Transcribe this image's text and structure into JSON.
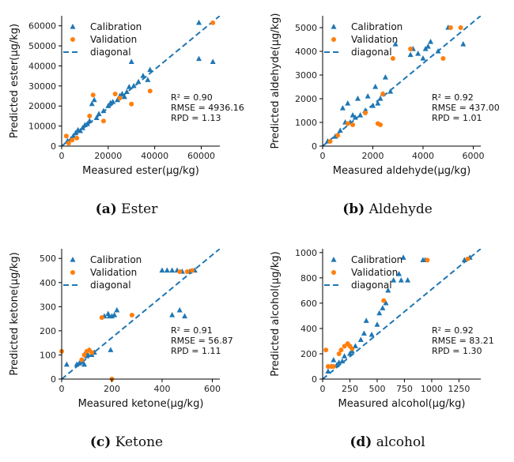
{
  "colors": {
    "calibration": "#1f77b4",
    "validation": "#ff7f0e",
    "diagonal": "#1f77b4",
    "axis": "#000000"
  },
  "captions": [
    {
      "letter": "(a)",
      "name": "Ester"
    },
    {
      "letter": "(b)",
      "name": "Aldehyde"
    },
    {
      "letter": "(c)",
      "name": "Ketone"
    },
    {
      "letter": "(d)",
      "name": "alcohol"
    }
  ],
  "chart_data": [
    {
      "type": "scatter",
      "xlabel": "Measured ester(μg/kg)",
      "ylabel": "Predicted ester(μg/kg)",
      "xlim": [
        0,
        68000
      ],
      "ylim": [
        0,
        65000
      ],
      "xticks": [
        0,
        20000,
        40000,
        60000
      ],
      "yticks": [
        0,
        10000,
        20000,
        30000,
        40000,
        50000,
        60000
      ],
      "legend": {
        "position": "top-left",
        "entries": [
          "Calibration",
          "Validation",
          "diagonal"
        ]
      },
      "stats": [
        "R² = 0.90",
        "RMSE = 4936.16",
        "RPD = 1.13"
      ],
      "series": [
        {
          "name": "Calibration",
          "marker": "triangle",
          "points": [
            [
              2500,
              2500
            ],
            [
              4000,
              3500
            ],
            [
              5000,
              5000
            ],
            [
              6000,
              6500
            ],
            [
              7000,
              8000
            ],
            [
              8000,
              7500
            ],
            [
              9000,
              9000
            ],
            [
              10000,
              10500
            ],
            [
              11000,
              11000
            ],
            [
              12000,
              12500
            ],
            [
              13000,
              21000
            ],
            [
              14000,
              23000
            ],
            [
              15000,
              14000
            ],
            [
              16000,
              16000
            ],
            [
              18000,
              17500
            ],
            [
              20000,
              20000
            ],
            [
              21000,
              21500
            ],
            [
              22000,
              22000
            ],
            [
              24000,
              23000
            ],
            [
              25000,
              25000
            ],
            [
              26000,
              26000
            ],
            [
              27000,
              24500
            ],
            [
              28000,
              27000
            ],
            [
              29000,
              29500
            ],
            [
              30000,
              42000
            ],
            [
              31000,
              30000
            ],
            [
              33000,
              32000
            ],
            [
              35000,
              35000
            ],
            [
              37000,
              33000
            ],
            [
              38000,
              38000
            ],
            [
              59000,
              43500
            ],
            [
              59000,
              61500
            ],
            [
              65000,
              42000
            ]
          ]
        },
        {
          "name": "Validation",
          "marker": "circle",
          "points": [
            [
              2000,
              5000
            ],
            [
              3000,
              1500
            ],
            [
              4500,
              3000
            ],
            [
              6500,
              4000
            ],
            [
              12000,
              15000
            ],
            [
              13500,
              25500
            ],
            [
              18000,
              12500
            ],
            [
              23000,
              26000
            ],
            [
              25000,
              24000
            ],
            [
              30000,
              21000
            ],
            [
              38000,
              27500
            ],
            [
              65000,
              61500
            ]
          ]
        },
        {
          "name": "diagonal",
          "line": "dashed",
          "from": [
            0,
            0
          ],
          "to": [
            68000,
            65000
          ]
        }
      ]
    },
    {
      "type": "scatter",
      "xlabel": "Measured aldehyde(μg/kg)",
      "ylabel": "Predicted aldehyde(μg/kg)",
      "xlim": [
        0,
        6300
      ],
      "ylim": [
        0,
        5500
      ],
      "xticks": [
        0,
        2000,
        4000,
        6000
      ],
      "yticks": [
        0,
        1000,
        2000,
        3000,
        4000,
        5000
      ],
      "legend": {
        "position": "top-left",
        "entries": [
          "Calibration",
          "Validation",
          "diagonal"
        ]
      },
      "stats": [
        "R² = 0.92",
        "RMSE = 437.00",
        "RPD = 1.01"
      ],
      "series": [
        {
          "name": "Calibration",
          "marker": "triangle",
          "points": [
            [
              200,
              200
            ],
            [
              500,
              400
            ],
            [
              700,
              650
            ],
            [
              800,
              1600
            ],
            [
              900,
              1000
            ],
            [
              1000,
              1800
            ],
            [
              1100,
              1000
            ],
            [
              1200,
              1300
            ],
            [
              1300,
              1200
            ],
            [
              1400,
              2000
            ],
            [
              1500,
              1300
            ],
            [
              1700,
              1500
            ],
            [
              1800,
              2100
            ],
            [
              2000,
              1700
            ],
            [
              2100,
              2500
            ],
            [
              2200,
              1800
            ],
            [
              2300,
              2000
            ],
            [
              2400,
              2200
            ],
            [
              2500,
              2900
            ],
            [
              2700,
              2300
            ],
            [
              2900,
              4300
            ],
            [
              3500,
              3850
            ],
            [
              3600,
              4100
            ],
            [
              3800,
              3900
            ],
            [
              4000,
              3700
            ],
            [
              4100,
              4100
            ],
            [
              4200,
              4200
            ],
            [
              4300,
              4400
            ],
            [
              4600,
              4000
            ],
            [
              5000,
              5000
            ],
            [
              5600,
              4300
            ]
          ]
        },
        {
          "name": "Validation",
          "marker": "circle",
          "points": [
            [
              300,
              200
            ],
            [
              600,
              450
            ],
            [
              1000,
              950
            ],
            [
              1200,
              900
            ],
            [
              1700,
              1400
            ],
            [
              2200,
              950
            ],
            [
              2300,
              900
            ],
            [
              2400,
              2200
            ],
            [
              2800,
              3700
            ],
            [
              3500,
              4100
            ],
            [
              4800,
              3700
            ],
            [
              5100,
              5000
            ],
            [
              5500,
              5000
            ]
          ]
        },
        {
          "name": "diagonal",
          "line": "dashed",
          "from": [
            0,
            0
          ],
          "to": [
            6300,
            5500
          ]
        }
      ]
    },
    {
      "type": "scatter",
      "xlabel": "Measured ketone(μg/kg)",
      "ylabel": "Predicted ketone(μg/kg)",
      "xlim": [
        0,
        630
      ],
      "ylim": [
        0,
        540
      ],
      "xticks": [
        0,
        200,
        400,
        600
      ],
      "yticks": [
        0,
        100,
        200,
        300,
        400,
        500
      ],
      "legend": {
        "position": "top-left",
        "entries": [
          "Calibration",
          "Validation",
          "diagonal"
        ]
      },
      "stats": [
        "R² = 0.91",
        "RMSE = 56.87",
        "RPD = 1.11"
      ],
      "series": [
        {
          "name": "Calibration",
          "marker": "triangle",
          "points": [
            [
              20,
              60
            ],
            [
              60,
              60
            ],
            [
              70,
              65
            ],
            [
              80,
              70
            ],
            [
              90,
              60
            ],
            [
              95,
              110
            ],
            [
              100,
              95
            ],
            [
              105,
              100
            ],
            [
              110,
              120
            ],
            [
              120,
              100
            ],
            [
              130,
              110
            ],
            [
              170,
              260
            ],
            [
              185,
              270
            ],
            [
              190,
              260
            ],
            [
              195,
              120
            ],
            [
              200,
              260
            ],
            [
              210,
              265
            ],
            [
              220,
              285
            ],
            [
              400,
              450
            ],
            [
              420,
              450
            ],
            [
              440,
              450
            ],
            [
              460,
              450
            ],
            [
              470,
              285
            ],
            [
              480,
              445
            ],
            [
              490,
              260
            ],
            [
              510,
              445
            ],
            [
              530,
              450
            ],
            [
              440,
              265
            ]
          ]
        },
        {
          "name": "Validation",
          "marker": "circle",
          "points": [
            [
              0,
              115
            ],
            [
              80,
              80
            ],
            [
              90,
              100
            ],
            [
              100,
              115
            ],
            [
              110,
              120
            ],
            [
              120,
              110
            ],
            [
              160,
              255
            ],
            [
              200,
              0
            ],
            [
              280,
              265
            ],
            [
              470,
              445
            ],
            [
              500,
              445
            ],
            [
              520,
              450
            ]
          ]
        },
        {
          "name": "diagonal",
          "line": "dashed",
          "from": [
            0,
            0
          ],
          "to": [
            630,
            540
          ]
        }
      ]
    },
    {
      "type": "scatter",
      "xlabel": "Measured alcohol(μg/kg)",
      "ylabel": "Predicted alcohol(μg/kg)",
      "xlim": [
        0,
        1450
      ],
      "ylim": [
        0,
        1030
      ],
      "xticks": [
        0,
        250,
        500,
        750,
        1000,
        1250
      ],
      "yticks": [
        0,
        200,
        400,
        600,
        800,
        1000
      ],
      "legend": {
        "position": "top-left",
        "entries": [
          "Calibration",
          "Validation",
          "diagonal"
        ]
      },
      "stats": [
        "R² = 0.92",
        "RMSE = 83.21",
        "RPD = 1.30"
      ],
      "series": [
        {
          "name": "Calibration",
          "marker": "triangle",
          "points": [
            [
              50,
              60
            ],
            [
              80,
              100
            ],
            [
              100,
              150
            ],
            [
              130,
              110
            ],
            [
              150,
              130
            ],
            [
              180,
              140
            ],
            [
              200,
              180
            ],
            [
              250,
              200
            ],
            [
              270,
              220
            ],
            [
              300,
              260
            ],
            [
              350,
              310
            ],
            [
              380,
              360
            ],
            [
              400,
              460
            ],
            [
              450,
              350
            ],
            [
              500,
              430
            ],
            [
              520,
              520
            ],
            [
              550,
              560
            ],
            [
              580,
              600
            ],
            [
              600,
              700
            ],
            [
              650,
              780
            ],
            [
              700,
              830
            ],
            [
              720,
              780
            ],
            [
              740,
              960
            ],
            [
              780,
              780
            ],
            [
              920,
              940
            ],
            [
              940,
              940
            ],
            [
              1300,
              940
            ],
            [
              1350,
              960
            ]
          ]
        },
        {
          "name": "Validation",
          "marker": "circle",
          "points": [
            [
              30,
              230
            ],
            [
              50,
              100
            ],
            [
              80,
              100
            ],
            [
              100,
              100
            ],
            [
              150,
              200
            ],
            [
              170,
              230
            ],
            [
              200,
              260
            ],
            [
              230,
              280
            ],
            [
              250,
              260
            ],
            [
              270,
              240
            ],
            [
              560,
              620
            ],
            [
              960,
              940
            ],
            [
              1330,
              950
            ]
          ]
        },
        {
          "name": "diagonal",
          "line": "dashed",
          "from": [
            0,
            0
          ],
          "to": [
            1450,
            1030
          ]
        }
      ]
    }
  ]
}
